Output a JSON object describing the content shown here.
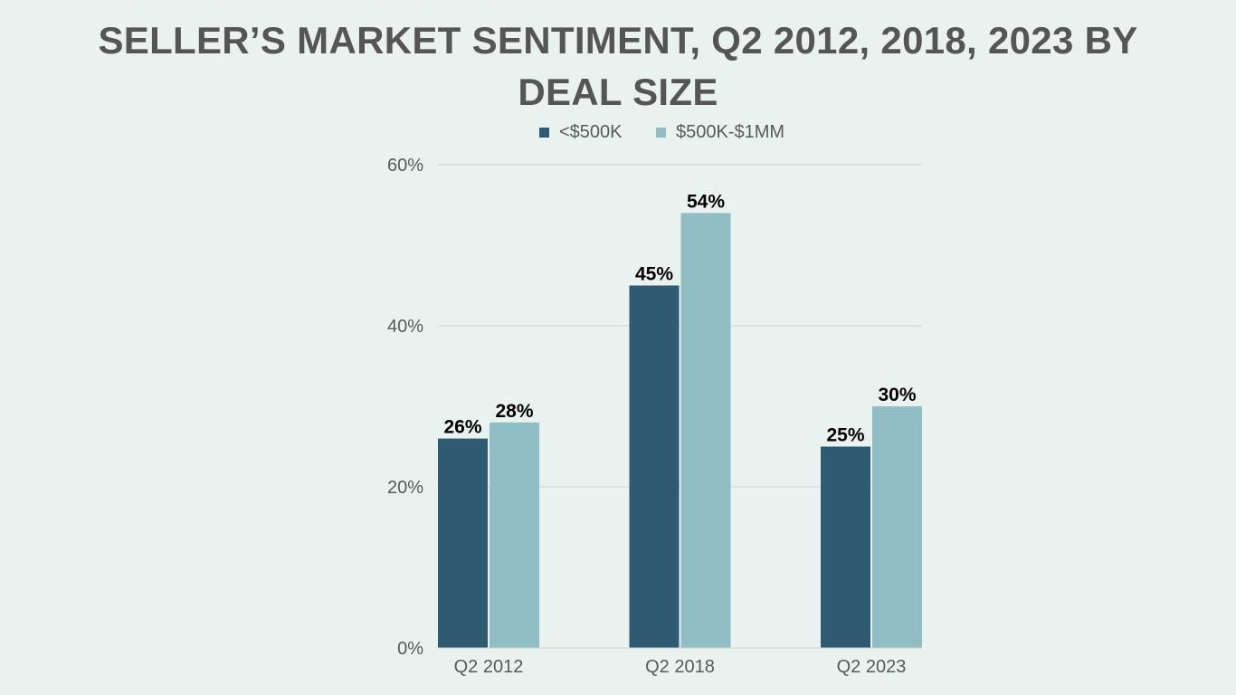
{
  "chart_data": {
    "type": "bar",
    "title_lines": [
      "SELLER’S MARKET SENTIMENT, Q2 2012, 2018, 2023 BY",
      "DEAL SIZE"
    ],
    "xlabel": "",
    "ylabel": "",
    "categories": [
      "Q2 2012",
      "Q2 2018",
      "Q2 2023"
    ],
    "series": [
      {
        "name": "<$500K",
        "color": "#2f5b72",
        "values": [
          26,
          45,
          25
        ],
        "labels": [
          "26%",
          "45%",
          "25%"
        ]
      },
      {
        "name": "$500K-$1MM",
        "color": "#91bec4",
        "values": [
          28,
          54,
          30
        ],
        "labels": [
          "28%",
          "54%",
          "30%"
        ]
      }
    ],
    "ylim": [
      0,
      60
    ],
    "yticks": [
      0,
      20,
      40,
      60
    ],
    "ytick_labels": [
      "0%",
      "20%",
      "40%",
      "60%"
    ],
    "grid": true,
    "legend_position": "top-center",
    "colors": {
      "background": "#e9f2ef",
      "title": "#555555",
      "axis_text": "#595959",
      "grid": "#cfd6d4",
      "data_label": "#000000"
    }
  }
}
